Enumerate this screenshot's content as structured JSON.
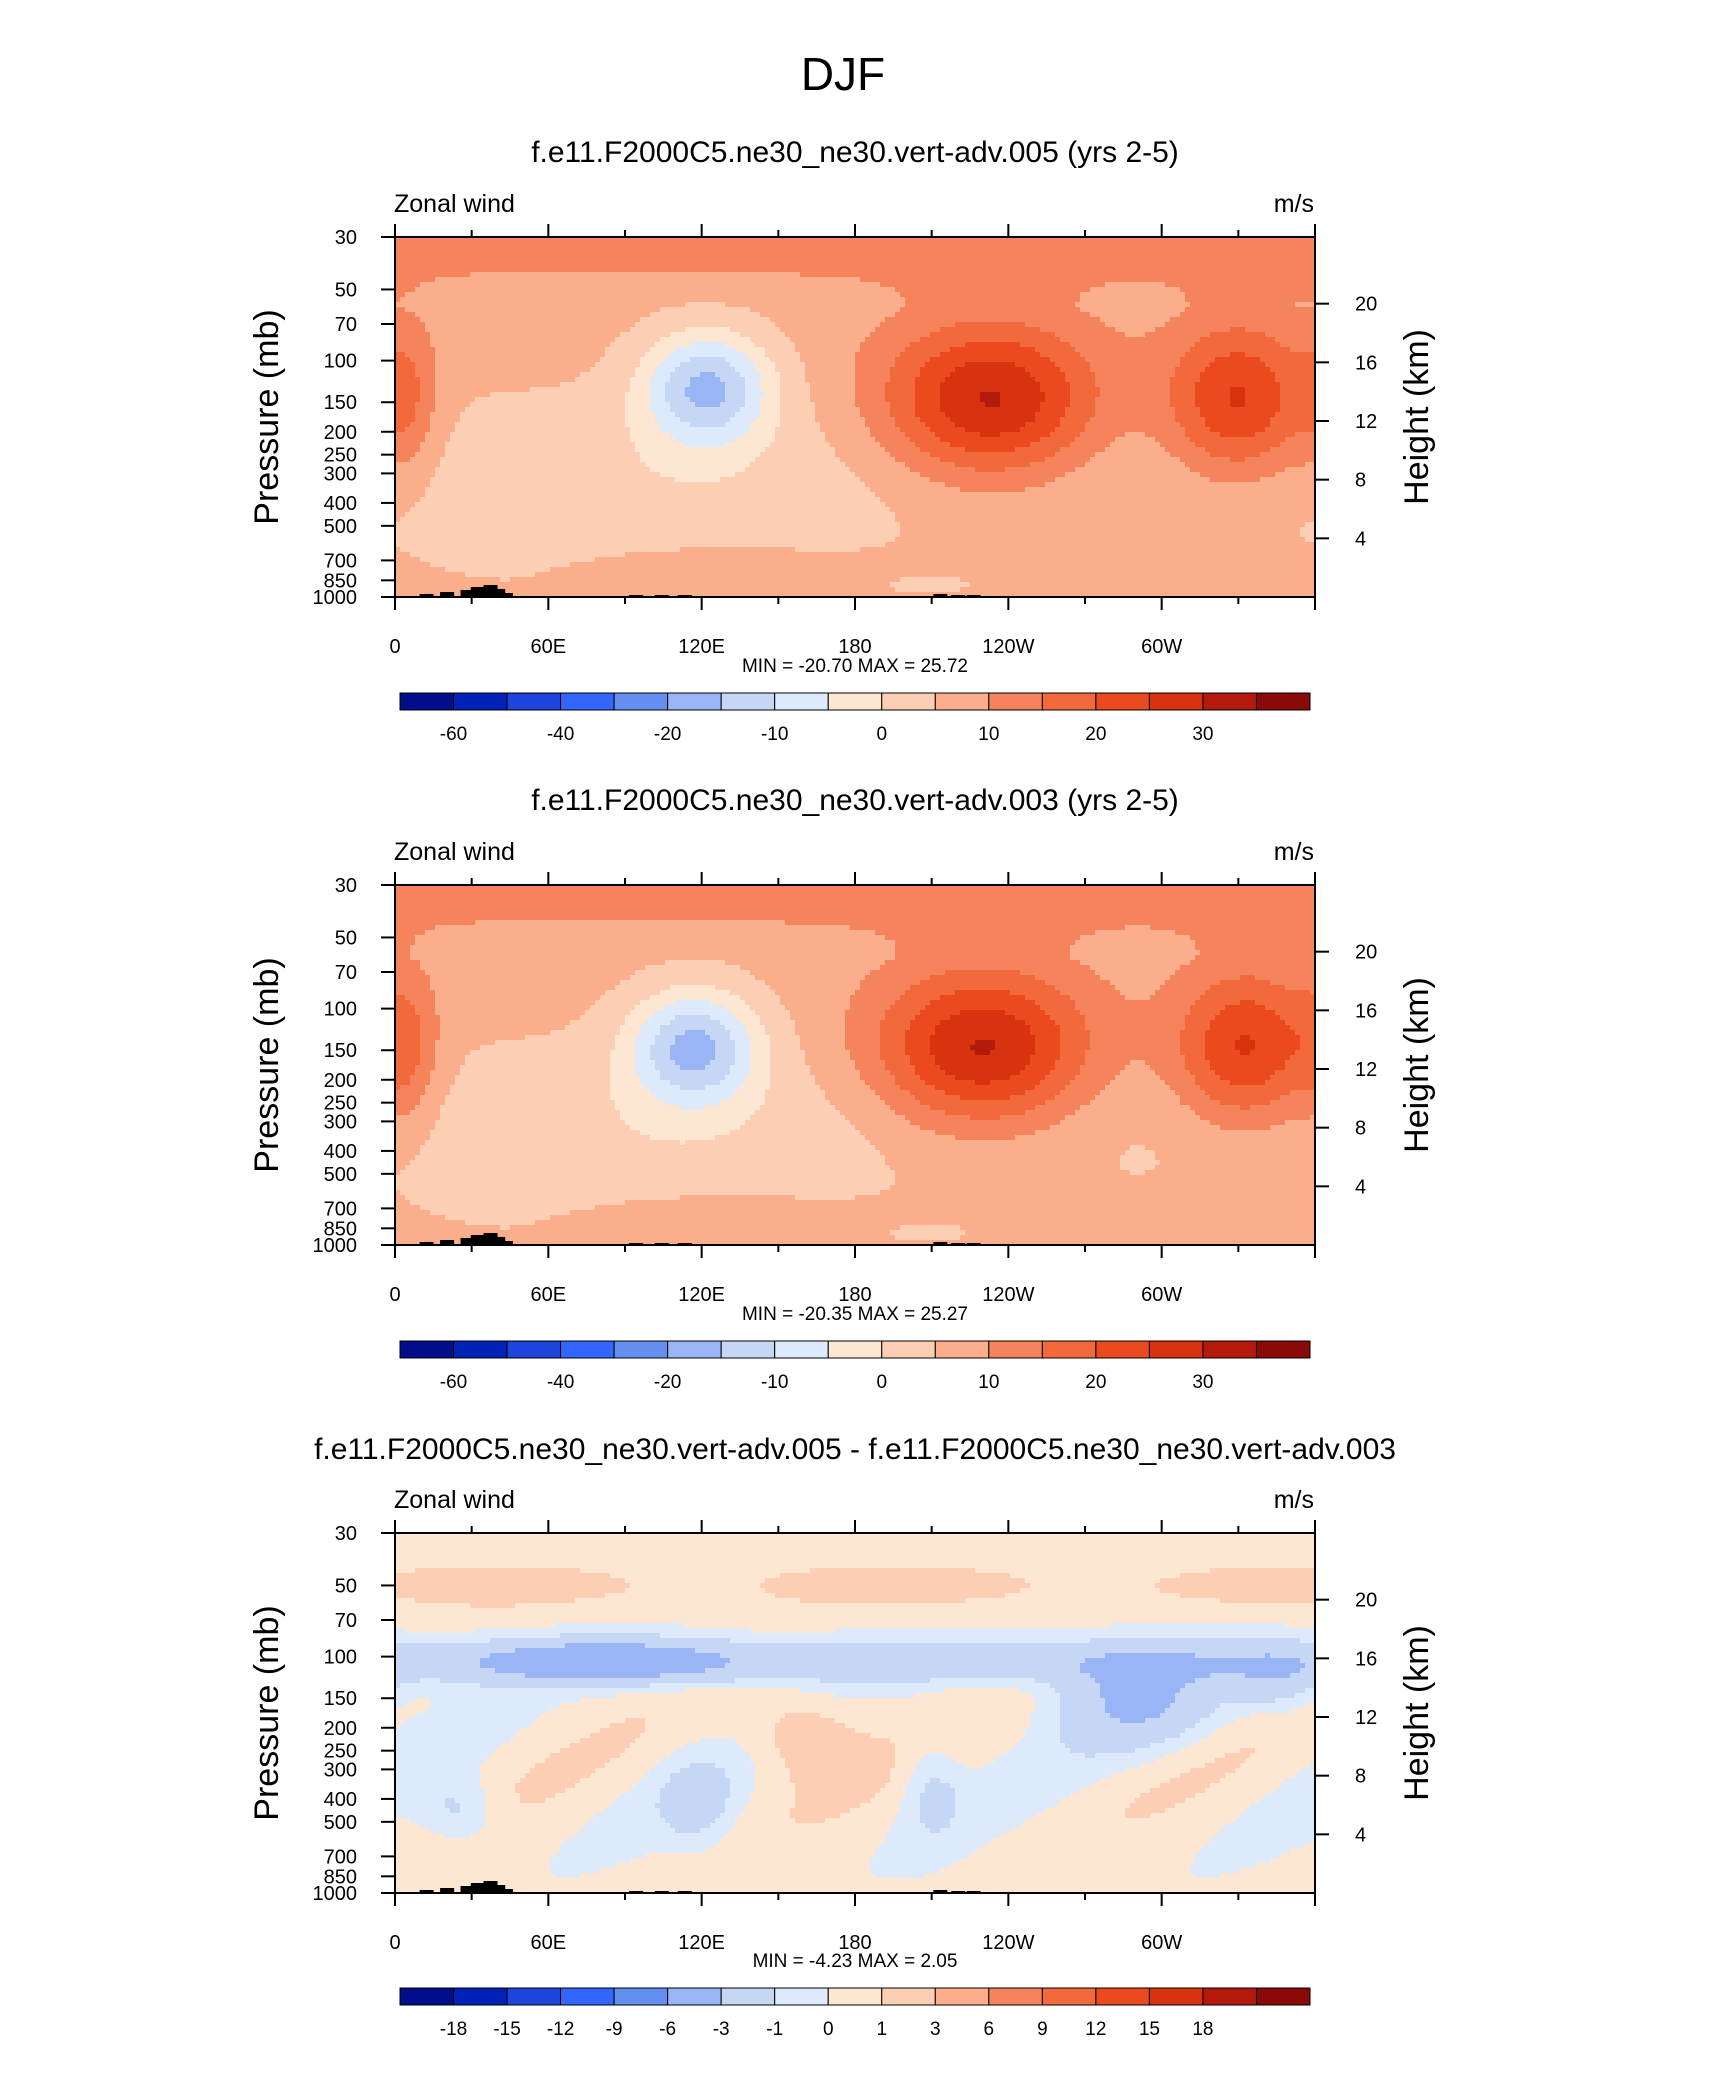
{
  "figure": {
    "title": "DJF"
  },
  "chart_data": [
    {
      "type": "heatmap",
      "title": "f.e11.F2000C5.ne30_ne30.vert-adv.005 (yrs 2-5)",
      "left_string": "Zonal wind",
      "right_string": "m/s",
      "xlabel": "",
      "ylabel": "Pressure (mb)",
      "y2label": "Height (km)",
      "x_ticks": [
        "0",
        "60E",
        "120E",
        "180",
        "120W",
        "60W"
      ],
      "y_ticks": [
        "30",
        "50",
        "70",
        "100",
        "150",
        "200",
        "250",
        "300",
        "400",
        "500",
        "700",
        "850",
        "1000"
      ],
      "y2_ticks": [
        "20",
        "16",
        "12",
        "8",
        "4"
      ],
      "stats": "MIN = -20.70  MAX =  25.72",
      "min": -20.7,
      "max": 25.72,
      "colorbar_labels": [
        "-60",
        "-40",
        "-20",
        "-10",
        "0",
        "10",
        "20",
        "30"
      ],
      "features": [
        {
          "lon": 125,
          "p": 130,
          "value": -20.7
        },
        {
          "lon": 233,
          "p": 150,
          "value": 25.7
        },
        {
          "lon": 330,
          "p": 150,
          "value": 18
        }
      ]
    },
    {
      "type": "heatmap",
      "title": "f.e11.F2000C5.ne30_ne30.vert-adv.003 (yrs 2-5)",
      "left_string": "Zonal wind",
      "right_string": "m/s",
      "xlabel": "",
      "ylabel": "Pressure (mb)",
      "y2label": "Height (km)",
      "x_ticks": [
        "0",
        "60E",
        "120E",
        "180",
        "120W",
        "60W"
      ],
      "y_ticks": [
        "30",
        "50",
        "70",
        "100",
        "150",
        "200",
        "250",
        "300",
        "400",
        "500",
        "700",
        "850",
        "1000"
      ],
      "y2_ticks": [
        "20",
        "16",
        "12",
        "8",
        "4"
      ],
      "stats": "MIN = -20.35  MAX =  25.27",
      "min": -20.35,
      "max": 25.27,
      "colorbar_labels": [
        "-60",
        "-40",
        "-20",
        "-10",
        "0",
        "10",
        "20",
        "30"
      ],
      "features": [
        {
          "lon": 115,
          "p": 150,
          "value": -20.35
        },
        {
          "lon": 230,
          "p": 150,
          "value": 25.27
        },
        {
          "lon": 333,
          "p": 150,
          "value": 18
        }
      ]
    },
    {
      "type": "heatmap",
      "title": "f.e11.F2000C5.ne30_ne30.vert-adv.005 - f.e11.F2000C5.ne30_ne30.vert-adv.003",
      "left_string": "Zonal wind",
      "right_string": "m/s",
      "xlabel": "",
      "ylabel": "Pressure (mb)",
      "y2label": "Height (km)",
      "x_ticks": [
        "0",
        "60E",
        "120E",
        "180",
        "120W",
        "60W"
      ],
      "y_ticks": [
        "30",
        "50",
        "70",
        "100",
        "150",
        "200",
        "250",
        "300",
        "400",
        "500",
        "700",
        "850",
        "1000"
      ],
      "y2_ticks": [
        "20",
        "16",
        "12",
        "8",
        "4"
      ],
      "stats": "MIN =  -4.23  MAX =   2.05",
      "min": -4.23,
      "max": 2.05,
      "colorbar_labels": [
        "-18",
        "-15",
        "-12",
        "-9",
        "-6",
        "-3",
        "-1",
        "0",
        "1",
        "3",
        "6",
        "9",
        "12",
        "15",
        "18"
      ],
      "features": [
        {
          "lon": 90,
          "p": 105,
          "value": -4.23
        },
        {
          "lon": 290,
          "p": 135,
          "value": -3.5
        },
        {
          "lon": 160,
          "p": 200,
          "value": 2.05
        }
      ]
    }
  ],
  "colors": {
    "scale": [
      "#000e8c",
      "#0022b6",
      "#1f44dc",
      "#3366ff",
      "#6390f0",
      "#99b5f5",
      "#c5d7f5",
      "#dceafb",
      "#fde6d2",
      "#fccfb5",
      "#fbae8c",
      "#f5845c",
      "#f26a3c",
      "#eb4a1f",
      "#d8320f",
      "#b31a0c",
      "#8a0a08"
    ]
  }
}
